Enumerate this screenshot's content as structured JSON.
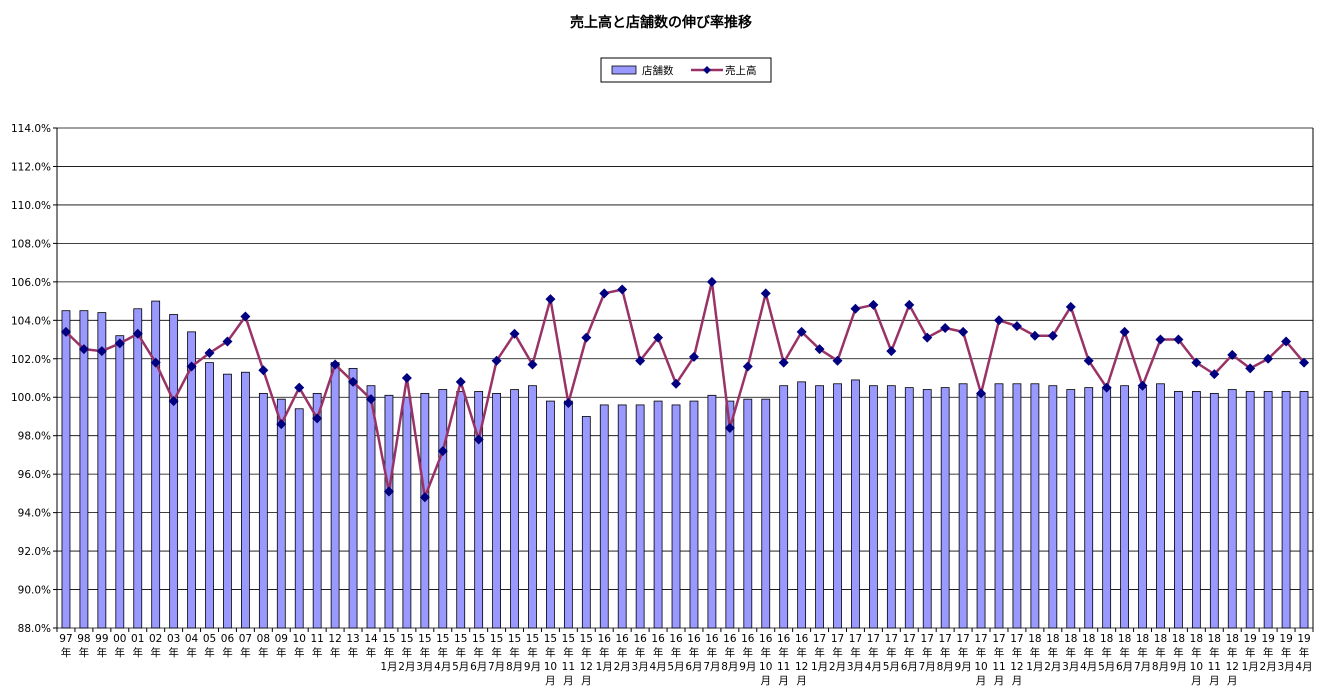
{
  "chart_data": {
    "type": "combo",
    "title": "売上高と店舗数の伸び率推移",
    "categories": [
      "97年",
      "98年",
      "99年",
      "00年",
      "01年",
      "02年",
      "03年",
      "04年",
      "05年",
      "06年",
      "07年",
      "08年",
      "09年",
      "10年",
      "11年",
      "12年",
      "13年",
      "14年",
      "15年1月",
      "15年2月",
      "15年3月",
      "15年4月",
      "15年5月",
      "15年6月",
      "15年7月",
      "15年8月",
      "15年9月",
      "15年10月",
      "15年11月",
      "15年12月",
      "16年1月",
      "16年2月",
      "16年3月",
      "16年4月",
      "16年5月",
      "16年6月",
      "16年7月",
      "16年8月",
      "16年9月",
      "16年10月",
      "16年11月",
      "16年12月",
      "17年1月",
      "17年2月",
      "17年3月",
      "17年4月",
      "17年5月",
      "17年6月",
      "17年7月",
      "17年8月",
      "17年9月",
      "17年10月",
      "17年11月",
      "17年12月",
      "18年1月",
      "18年2月",
      "18年3月",
      "18年4月",
      "18年5月",
      "18年6月",
      "18年7月",
      "18年8月",
      "18年9月",
      "18年10月",
      "18年11月",
      "18年12月",
      "19年1月",
      "19年2月",
      "19年3月",
      "19年4月"
    ],
    "series": [
      {
        "name": "店舗数",
        "type": "bar",
        "color": "#9999ff",
        "values": [
          104.5,
          104.5,
          104.4,
          103.2,
          104.6,
          105.0,
          104.3,
          103.4,
          101.8,
          101.2,
          101.3,
          100.2,
          99.9,
          99.4,
          100.2,
          101.8,
          101.5,
          100.6,
          100.1,
          100.0,
          100.2,
          100.4,
          100.3,
          100.3,
          100.2,
          100.4,
          100.6,
          99.8,
          99.8,
          99.0,
          99.6,
          99.6,
          99.6,
          99.8,
          99.6,
          99.8,
          100.1,
          99.8,
          99.9,
          99.9,
          100.6,
          100.8,
          100.6,
          100.7,
          100.9,
          100.6,
          100.6,
          100.5,
          100.4,
          100.5,
          100.7,
          100.2,
          100.7,
          100.7,
          100.7,
          100.6,
          100.4,
          100.5,
          100.5,
          100.6,
          100.5,
          100.7,
          100.3,
          100.3,
          100.2,
          100.4,
          100.3,
          100.3,
          100.3,
          100.3
        ]
      },
      {
        "name": "売上高",
        "type": "line",
        "color": "#993366",
        "marker_color": "#000080",
        "values": [
          103.4,
          102.5,
          102.4,
          102.8,
          103.3,
          101.8,
          99.8,
          101.6,
          102.3,
          102.9,
          104.2,
          101.4,
          98.6,
          100.5,
          98.9,
          101.7,
          100.8,
          99.9,
          95.1,
          101.0,
          94.8,
          97.2,
          100.8,
          97.8,
          101.9,
          103.3,
          101.7,
          105.1,
          99.7,
          103.1,
          105.4,
          105.6,
          101.9,
          103.1,
          100.7,
          102.1,
          106.0,
          98.4,
          101.6,
          105.4,
          101.8,
          103.4,
          102.5,
          101.9,
          104.6,
          104.8,
          102.4,
          104.8,
          103.1,
          103.6,
          103.4,
          100.2,
          104.0,
          103.7,
          103.2,
          103.2,
          104.7,
          101.9,
          100.5,
          103.4,
          100.6,
          103.0,
          103.0,
          101.8,
          101.2,
          102.2,
          101.5,
          102.0,
          102.9,
          101.8
        ]
      }
    ],
    "ylim": [
      88,
      114
    ],
    "yticks": [
      {
        "value": 88,
        "label": "88.0%"
      },
      {
        "value": 90,
        "label": "90.0%"
      },
      {
        "value": 92,
        "label": "92.0%"
      },
      {
        "value": 94,
        "label": "94.0%"
      },
      {
        "value": 96,
        "label": "96.0%"
      },
      {
        "value": 98,
        "label": "98.0%"
      },
      {
        "value": 100,
        "label": "100.0%"
      },
      {
        "value": 102,
        "label": "102.0%"
      },
      {
        "value": 104,
        "label": "104.0%"
      },
      {
        "value": 106,
        "label": "106.0%"
      },
      {
        "value": 108,
        "label": "108.0%"
      },
      {
        "value": 110,
        "label": "110.0%"
      },
      {
        "value": 112,
        "label": "112.0%"
      },
      {
        "value": 114,
        "label": "114.0%"
      }
    ],
    "grid": true
  }
}
